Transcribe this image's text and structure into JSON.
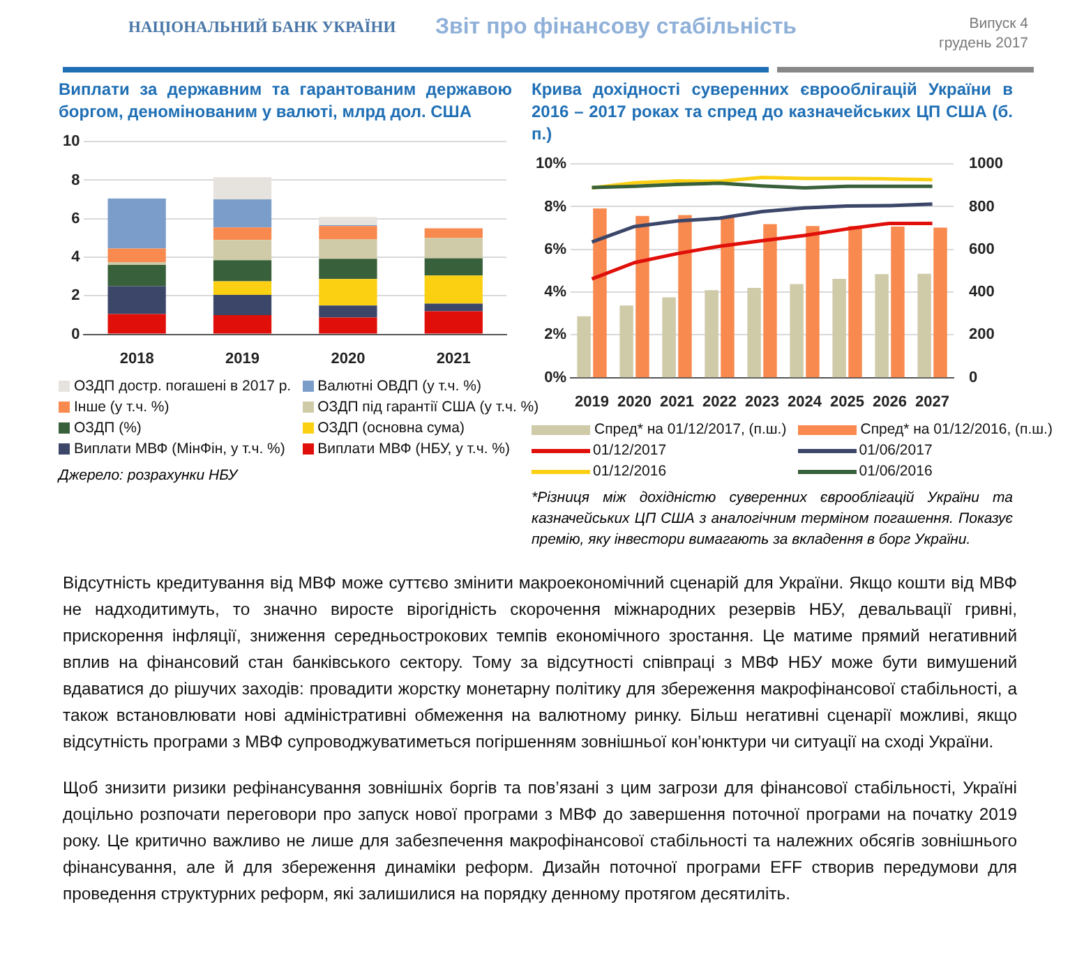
{
  "chart_data": [
    {
      "type": "other",
      "title": "Звіт про фінансову стабільність",
      "annotations": [
        "НАЦІОНАЛЬНИЙ БАНК УКРАЇНИ",
        "Випуск 4",
        "грудень 2017"
      ]
    },
    {
      "type": "bar",
      "title": "Виплати за державним та гарантованим державою боргом, деномінованим у валюті, млрд дол. США",
      "categories": [
        "2018",
        "2019",
        "2020",
        "2021"
      ],
      "stacked": true,
      "ylim": [
        0,
        10
      ],
      "yticks": [
        0,
        2,
        4,
        6,
        8,
        10
      ],
      "grid": "y",
      "legend": "bottom",
      "series": [
        {
          "name": "Виплати МВФ  (НБУ, у т.ч. %)",
          "color": "#e00f0a",
          "values": [
            1.05,
            1.0,
            0.87,
            1.2
          ]
        },
        {
          "name": "Виплати МВФ  (МінФін, у т.ч. %)",
          "color": "#3b4669",
          "values": [
            1.45,
            1.05,
            0.63,
            0.4
          ]
        },
        {
          "name": "ОЗДП (основна сума)",
          "color": "#fbd012",
          "values": [
            0,
            0.7,
            1.37,
            1.45
          ]
        },
        {
          "name": "ОЗДП (%)",
          "color": "#38603a",
          "values": [
            1.1,
            1.1,
            1.05,
            0.9
          ]
        },
        {
          "name": "ОЗДП під гарантії США (у т.ч. %)",
          "color": "#cfcaa8",
          "values": [
            0.15,
            1.05,
            1.0,
            1.05
          ]
        },
        {
          "name": "Інше (у т.ч. %)",
          "color": "#f8894f",
          "values": [
            0.7,
            0.65,
            0.7,
            0.5
          ]
        },
        {
          "name": "Валютні ОВДП (у т.ч. %)",
          "color": "#7b9dca",
          "values": [
            2.6,
            1.45,
            0.05,
            0
          ]
        },
        {
          "name": "ОЗДП достр. погашені в 2017 р.",
          "color": "#e6e2de",
          "values": [
            0,
            1.15,
            0.42,
            0
          ]
        }
      ],
      "annotations": [
        "Джерело: розрахунки НБУ"
      ]
    },
    {
      "type": "bar",
      "title": "Крива дохідності суверенних єврооблігацій України в 2016 – 2017 роках та спред до казначейських ЦП США (б. п.)",
      "categories": [
        "2019",
        "2020",
        "2021",
        "2022",
        "2023",
        "2024",
        "2025",
        "2026",
        "2027"
      ],
      "ylim": [
        0,
        10
      ],
      "yticks": [
        {
          "value": 0,
          "label": "0%"
        },
        {
          "value": 2,
          "label": "2%"
        },
        {
          "value": 4,
          "label": "4%"
        },
        {
          "value": 6,
          "label": "6%"
        },
        {
          "value": 8,
          "label": "8%"
        },
        {
          "value": 10,
          "label": "10%"
        }
      ],
      "y2lim": [
        0,
        1000
      ],
      "y2ticks": [
        0,
        200,
        400,
        600,
        800,
        1000
      ],
      "grid": "y",
      "legend": "bottom",
      "series": [
        {
          "name": "Спред* на 01/12/2017, (п.ш.)",
          "type": "bar",
          "axis": "y2",
          "color": "#cfcaa8",
          "values": [
            287,
            337,
            376,
            409,
            420,
            438,
            462,
            484,
            486
          ]
        },
        {
          "name": "Спред* на 01/12/2016, (п.ш.)",
          "type": "bar",
          "axis": "y2",
          "color": "#f8894f",
          "values": [
            792,
            757,
            761,
            750,
            718,
            709,
            709,
            707,
            702
          ]
        },
        {
          "name": "01/12/2017",
          "type": "line",
          "color": "#e00f0a",
          "values": [
            4.62,
            5.38,
            5.8,
            6.15,
            6.41,
            6.65,
            6.96,
            7.22,
            7.22
          ]
        },
        {
          "name": "01/06/2017",
          "type": "line",
          "color": "#3b4669",
          "values": [
            6.35,
            7.07,
            7.33,
            7.46,
            7.77,
            7.94,
            8.03,
            8.05,
            8.12
          ]
        },
        {
          "name": "01/12/2016",
          "type": "line",
          "color": "#fbd012",
          "values": [
            8.88,
            9.12,
            9.21,
            9.19,
            9.37,
            9.32,
            9.32,
            9.3,
            9.26
          ]
        },
        {
          "name": "01/06/2016",
          "type": "line",
          "color": "#38603a",
          "values": [
            8.9,
            8.95,
            9.04,
            9.1,
            8.97,
            8.88,
            8.95,
            8.95,
            8.95
          ]
        }
      ],
      "annotations": [
        "*Різниця між дохідністю суверенних єврооблігацій України та казначейських ЦП США з аналогічним терміном погашення. Показує премію, яку інвестори вимагають за вкладення в борг України."
      ]
    },
    {
      "type": "other",
      "annotations": [
        "Відсутність кредитування від МВФ може суттєво змінити макроекономічний сценарій для України. Якщо кошти від МВФ не надходитимуть, то значно виросте вірогідність скорочення міжнародних резервів НБУ, девальвації гривні, прискорення інфляції, зниження середньострокових темпів економічного зростання. Це матиме прямий негативний вплив на фінансовий стан банківського сектору. Тому за відсутності співпраці з МВФ НБУ може бути вимушений вдаватися до рішучих заходів: провадити жорстку монетарну політику для збереження макрофінансової стабільності, а також встановлювати нові адміністративні обмеження на валютному ринку. Більш негативні сценарії можливі, якщо відсутність програми з МВФ супроводжуватиметься погіршенням зовнішньої кон’юнктури чи ситуації на сході України.",
        "Щоб знизити ризики рефінансування зовнішніх боргів та пов’язані з цим загрози для фінансової стабільності, Україні доцільно розпочати переговори про запуск нової програми з МВФ до завершення поточної програми на початку 2019 року. Це критично важливо не лише для забезпечення макрофінансової стабільності та належних обсягів зовнішнього фінансування, але й для збереження динаміки реформ. Дизайн поточної програми EFF створив передумови для проведення структурних реформ, які залишилися на порядку денному протягом десятиліть."
      ]
    }
  ]
}
